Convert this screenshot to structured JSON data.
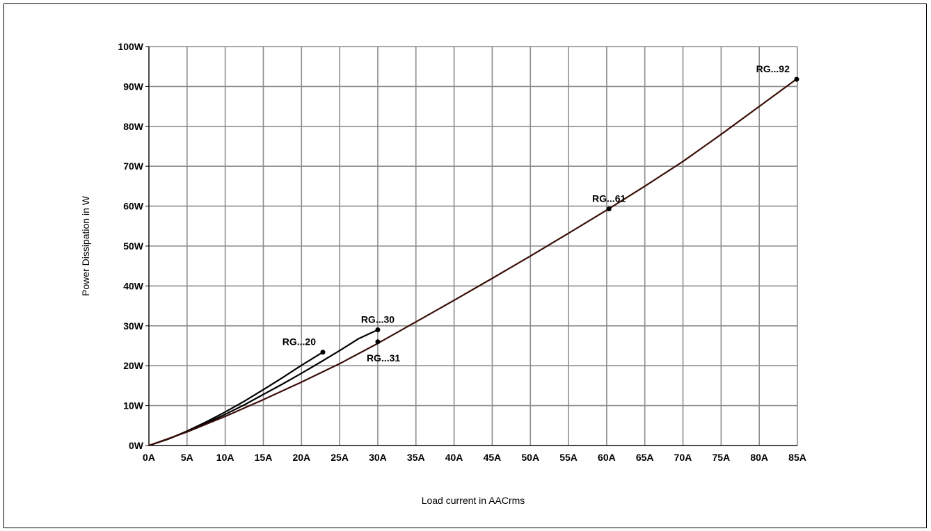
{
  "chart_data": {
    "type": "line",
    "xlabel": "Load current in AACrms",
    "ylabel": "Power Dissipation in W",
    "xlim": [
      0,
      85
    ],
    "ylim": [
      0,
      100
    ],
    "x_ticks": [
      0,
      5,
      10,
      15,
      20,
      25,
      30,
      35,
      40,
      45,
      50,
      55,
      60,
      65,
      70,
      75,
      80,
      85
    ],
    "x_tick_labels": [
      "0A",
      "5A",
      "10A",
      "15A",
      "20A",
      "25A",
      "30A",
      "35A",
      "40A",
      "45A",
      "50A",
      "55A",
      "60A",
      "65A",
      "70A",
      "75A",
      "80A",
      "85A"
    ],
    "y_ticks": [
      0,
      10,
      20,
      30,
      40,
      50,
      60,
      70,
      80,
      90,
      100
    ],
    "y_tick_labels": [
      "0W",
      "10W",
      "20W",
      "30W",
      "40W",
      "50W",
      "60W",
      "70W",
      "80W",
      "90W",
      "100W"
    ],
    "grid": true,
    "line_color": "#000000",
    "main_curve_color": "#3a0d08",
    "series": [
      {
        "name": "RG...20",
        "x": [
          0,
          2.5,
          5,
          7.5,
          10,
          12.5,
          15,
          17.5,
          20,
          22.8
        ],
        "values": [
          0,
          1.6,
          3.6,
          5.9,
          8.4,
          11.1,
          14.0,
          17.0,
          20.1,
          23.4
        ]
      },
      {
        "name": "RG...30",
        "x": [
          0,
          2.5,
          5,
          7.5,
          10,
          12.5,
          15,
          17.5,
          20,
          22.5,
          25,
          27.5,
          30
        ],
        "values": [
          0,
          1.6,
          3.5,
          5.6,
          7.8,
          10.2,
          12.8,
          15.4,
          18.1,
          20.9,
          23.8,
          26.8,
          29.0
        ]
      },
      {
        "name": "RG...31 / RG...61 / RG...92",
        "x": [
          0,
          5,
          10,
          15,
          20,
          25,
          30,
          35,
          40,
          45,
          50,
          55,
          60,
          65,
          70,
          75,
          80,
          85
        ],
        "values": [
          0,
          3.4,
          7.3,
          11.5,
          15.9,
          20.5,
          25.6,
          31.0,
          36.4,
          41.9,
          47.5,
          53.2,
          59.0,
          65.0,
          71.2,
          78.0,
          85.0,
          92.0
        ]
      }
    ],
    "markers": [
      {
        "label": "RG...20",
        "x": 22.8,
        "y": 23.4,
        "label_anchor": "end",
        "label_position": "above-left"
      },
      {
        "label": "RG...30",
        "x": 30.0,
        "y": 29.0,
        "label_anchor": "middle",
        "label_position": "above"
      },
      {
        "label": "RG...31",
        "x": 30.0,
        "y": 26.0,
        "label_anchor": "start",
        "label_position": "below"
      },
      {
        "label": "RG...61",
        "x": 60.3,
        "y": 59.3,
        "label_anchor": "middle",
        "label_position": "above"
      },
      {
        "label": "RG...92",
        "x": 84.9,
        "y": 91.8,
        "label_anchor": "end",
        "label_position": "above-left"
      }
    ]
  }
}
